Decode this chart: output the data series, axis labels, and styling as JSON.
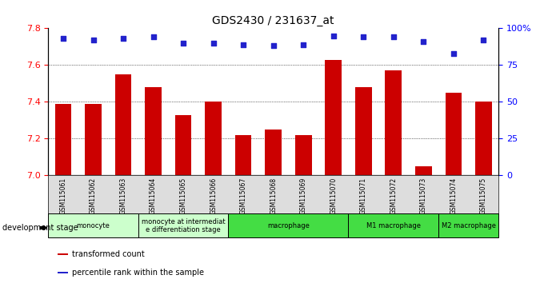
{
  "title": "GDS2430 / 231637_at",
  "samples": [
    "GSM115061",
    "GSM115062",
    "GSM115063",
    "GSM115064",
    "GSM115065",
    "GSM115066",
    "GSM115067",
    "GSM115068",
    "GSM115069",
    "GSM115070",
    "GSM115071",
    "GSM115072",
    "GSM115073",
    "GSM115074",
    "GSM115075"
  ],
  "bar_values": [
    7.39,
    7.39,
    7.55,
    7.48,
    7.33,
    7.4,
    7.22,
    7.25,
    7.22,
    7.63,
    7.48,
    7.57,
    7.05,
    7.45,
    7.4
  ],
  "percentile_values": [
    93,
    92,
    93,
    94,
    90,
    90,
    89,
    88,
    89,
    95,
    94,
    94,
    91,
    83,
    92
  ],
  "bar_color": "#CC0000",
  "dot_color": "#2222CC",
  "ylim_left": [
    7.0,
    7.8
  ],
  "ylim_right": [
    0,
    100
  ],
  "yticks_left": [
    7.0,
    7.2,
    7.4,
    7.6,
    7.8
  ],
  "yticks_right": [
    0,
    25,
    50,
    75,
    100
  ],
  "grid_values": [
    7.2,
    7.4,
    7.6
  ],
  "groups": [
    {
      "label": "monocyte",
      "start": 0,
      "end": 2,
      "color": "#ccffcc"
    },
    {
      "label": "monocyte at intermediat\ne differentiation stage",
      "start": 3,
      "end": 5,
      "color": "#ccffcc"
    },
    {
      "label": "macrophage",
      "start": 6,
      "end": 9,
      "color": "#44dd44"
    },
    {
      "label": "M1 macrophage",
      "start": 10,
      "end": 12,
      "color": "#44dd44"
    },
    {
      "label": "M2 macrophage",
      "start": 13,
      "end": 14,
      "color": "#44dd44"
    }
  ],
  "legend_bar_label": "transformed count",
  "legend_dot_label": "percentile rank within the sample",
  "dev_stage_label": "development stage",
  "bg_color": "#ffffff"
}
